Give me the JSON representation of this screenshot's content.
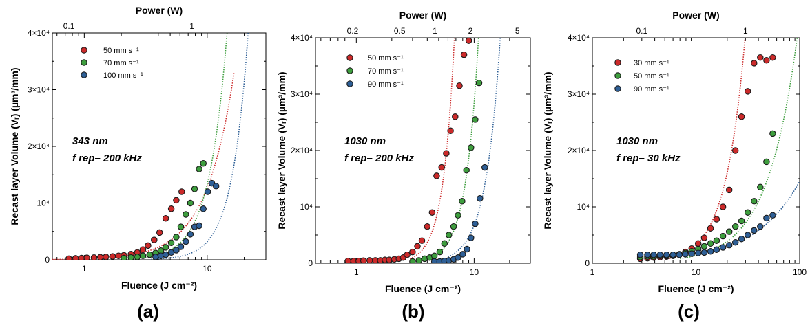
{
  "chart_data": [
    {
      "type": "scatter",
      "panel_label": "(a)",
      "xlabel": "Fluence  (J cm⁻²)",
      "ylabel": "Recast layer Volume (Vᵣ) (µm³/mm)",
      "top_xlabel": "Power (W)",
      "xscale": "log",
      "xlim": [
        0.55,
        30
      ],
      "ylim": [
        0,
        40000
      ],
      "x_ticks": [
        {
          "v": 1,
          "label": "1"
        },
        {
          "v": 10,
          "label": "10"
        }
      ],
      "top_ticks": [
        {
          "v": 0.75,
          "label": "0.1"
        },
        {
          "v": 7.5,
          "label": "1"
        }
      ],
      "y_ticks": [
        {
          "v": 0,
          "label": "0"
        },
        {
          "v": 10000,
          "label": "10⁴"
        },
        {
          "v": 20000,
          "label": "2×10⁴"
        },
        {
          "v": 30000,
          "label": "3×10⁴"
        },
        {
          "v": 40000,
          "label": "4×10⁴"
        }
      ],
      "annotation": [
        "343 nm",
        "f rep– 200 kHz"
      ],
      "legend_position": "top-left",
      "series": [
        {
          "name": "50 mm s⁻¹",
          "color": "#cc2a2a",
          "x": [
            0.75,
            0.85,
            0.95,
            1.05,
            1.2,
            1.35,
            1.5,
            1.7,
            1.9,
            2.1,
            2.4,
            2.7,
            3.0,
            3.3,
            3.7,
            4.1,
            4.6,
            5.1,
            5.6,
            6.2
          ],
          "y": [
            200,
            250,
            300,
            350,
            400,
            450,
            500,
            600,
            700,
            800,
            1000,
            1300,
            1800,
            2500,
            3500,
            4800,
            7300,
            9000,
            10500,
            12000
          ],
          "fit": {
            "a": 160,
            "b": 1.9,
            "x0": 0.55,
            "x1": 16.5
          }
        },
        {
          "name": "70 mm s⁻¹",
          "color": "#3e9e3e",
          "x": [
            2.1,
            2.4,
            2.7,
            3.0,
            3.4,
            3.8,
            4.2,
            4.6,
            5.1,
            5.6,
            6.1,
            6.7,
            7.3,
            7.9,
            8.6,
            9.3
          ],
          "y": [
            300,
            400,
            500,
            700,
            900,
            1200,
            1600,
            2200,
            3000,
            4000,
            5800,
            8000,
            10000,
            12500,
            16000,
            17000
          ],
          "fit": {
            "a": 15,
            "b": 2.95,
            "x0": 2.0,
            "x1": 18
          }
        },
        {
          "name": "100 mm s⁻¹",
          "color": "#2e5f96",
          "x": [
            3.8,
            4.2,
            4.6,
            5.1,
            5.6,
            6.1,
            6.7,
            7.3,
            7.9,
            8.6,
            9.3,
            10.1,
            10.9,
            11.8
          ],
          "y": [
            500,
            700,
            900,
            1300,
            1700,
            2300,
            3200,
            4500,
            5800,
            6000,
            9000,
            12000,
            13500,
            13000
          ],
          "fit": {
            "a": 1.6,
            "b": 3.3,
            "x0": 3.5,
            "x1": 30
          }
        }
      ]
    },
    {
      "type": "scatter",
      "panel_label": "(b)",
      "xlabel": "Fluence  (J cm⁻²)",
      "ylabel": "Recast layer Volume (Vᵣ) (µm³/mm)",
      "top_xlabel": "Power (W)",
      "xscale": "log",
      "xlim": [
        0.45,
        30
      ],
      "ylim": [
        0,
        40000
      ],
      "x_ticks": [
        {
          "v": 1,
          "label": "1"
        },
        {
          "v": 10,
          "label": "10"
        }
      ],
      "top_ticks": [
        {
          "v": 0.93,
          "label": "0.2"
        },
        {
          "v": 2.33,
          "label": "0.5"
        },
        {
          "v": 4.65,
          "label": "1"
        },
        {
          "v": 9.3,
          "label": "2"
        },
        {
          "v": 23.3,
          "label": "5"
        }
      ],
      "y_ticks": [
        {
          "v": 0,
          "label": "0"
        },
        {
          "v": 10000,
          "label": "10⁴"
        },
        {
          "v": 20000,
          "label": "2×10⁴"
        },
        {
          "v": 30000,
          "label": "3×10⁴"
        },
        {
          "v": 40000,
          "label": "4×10⁴"
        }
      ],
      "annotation": [
        "1030 nm",
        "f rep– 200 kHz"
      ],
      "legend_position": "top-left",
      "series": [
        {
          "name": "50 mm s⁻¹",
          "color": "#cc2a2a",
          "x": [
            0.85,
            0.95,
            1.05,
            1.15,
            1.3,
            1.45,
            1.6,
            1.75,
            1.9,
            2.1,
            2.3,
            2.5,
            2.7,
            3.0,
            3.3,
            3.6,
            4.0,
            4.4,
            4.8,
            5.3,
            5.8,
            6.3,
            6.9,
            7.5,
            8.2,
            9.0
          ],
          "y": [
            400,
            400,
            400,
            450,
            500,
            500,
            500,
            600,
            600,
            700,
            800,
            1000,
            1500,
            2000,
            3000,
            4000,
            6500,
            9000,
            15500,
            17000,
            19500,
            23500,
            26000,
            31500,
            37000,
            39500
          ],
          "fit": {
            "a": 10000,
            "b": 4.5,
            "x0": 2.85,
            "x1": 9.6,
            "ref": 5.0
          }
        },
        {
          "name": "70 mm s⁻¹",
          "color": "#3e9e3e",
          "x": [
            3.0,
            3.4,
            3.8,
            4.2,
            4.6,
            5.1,
            5.6,
            6.1,
            6.7,
            7.3,
            7.9,
            8.6,
            9.4,
            10.2,
            11.0
          ],
          "y": [
            300,
            500,
            800,
            1000,
            1300,
            2000,
            3500,
            5000,
            6500,
            8500,
            11000,
            16500,
            20500,
            25500,
            32000
          ],
          "fit": {
            "a": 10000,
            "b": 4.0,
            "x0": 4.8,
            "x1": 11.6,
            "ref": 7.7
          }
        },
        {
          "name": "90 mm s⁻¹",
          "color": "#2e5f96",
          "x": [
            4.6,
            5.1,
            5.6,
            6.1,
            6.7,
            7.3,
            8.0,
            8.7,
            9.4,
            10.2,
            11.2,
            12.3
          ],
          "y": [
            300,
            300,
            400,
            500,
            700,
            1000,
            1600,
            2500,
            4500,
            7000,
            11500,
            17000
          ],
          "fit": {
            "a": 10000,
            "b": 3.5,
            "x0": 6.0,
            "x1": 21,
            "ref": 11.2
          }
        }
      ]
    },
    {
      "type": "scatter",
      "panel_label": "(c)",
      "xlabel": "Fluence  (J cm⁻²)",
      "ylabel": "Recast layer Volume (Vᵣ) (µm³/mm)",
      "top_xlabel": "Power (W)",
      "xscale": "log",
      "xlim": [
        1,
        100
      ],
      "ylim": [
        0,
        40000
      ],
      "x_ticks": [
        {
          "v": 1,
          "label": "1"
        },
        {
          "v": 10,
          "label": "10"
        },
        {
          "v": 100,
          "label": "100"
        }
      ],
      "top_ticks": [
        {
          "v": 3.0,
          "label": "0.1"
        },
        {
          "v": 30,
          "label": "1"
        }
      ],
      "y_ticks": [
        {
          "v": 0,
          "label": "0"
        },
        {
          "v": 10000,
          "label": "10⁴"
        },
        {
          "v": 20000,
          "label": "2×10⁴"
        },
        {
          "v": 30000,
          "label": "3×10⁴"
        },
        {
          "v": 40000,
          "label": "4×10⁴"
        }
      ],
      "annotation": [
        "1030 nm",
        "f rep– 30 kHz"
      ],
      "legend_position": "top-left",
      "series": [
        {
          "name": "30 mm s⁻¹",
          "color": "#cc2a2a",
          "x": [
            2.9,
            3.4,
            3.9,
            4.5,
            5.2,
            6.0,
            6.9,
            7.9,
            9.1,
            10.5,
            12.0,
            13.8,
            15.8,
            18.2,
            20.9,
            24.0,
            27.5,
            31.6,
            36.3,
            41.7,
            47.9,
            55.0
          ],
          "y": [
            800,
            900,
            1000,
            1100,
            1200,
            1300,
            1600,
            2000,
            2600,
            3500,
            4500,
            6200,
            7800,
            10000,
            13000,
            20000,
            26000,
            30500,
            35500,
            36500,
            36000,
            36500
          ],
          "fit": {
            "a": 20000,
            "b": 2.3,
            "x0": 5.0,
            "x1": 40,
            "ref": 22
          }
        },
        {
          "name": "50 mm s⁻¹",
          "color": "#3e9e3e",
          "x": [
            2.9,
            3.4,
            3.9,
            4.5,
            5.2,
            6.0,
            6.9,
            7.9,
            9.1,
            10.5,
            12.0,
            13.8,
            15.8,
            18.2,
            20.9,
            24.0,
            27.5,
            31.6,
            36.3,
            41.7,
            47.9,
            55.0
          ],
          "y": [
            1100,
            1200,
            1200,
            1300,
            1300,
            1400,
            1500,
            1800,
            2100,
            2500,
            3000,
            3500,
            4000,
            4800,
            5600,
            6500,
            7500,
            9000,
            11000,
            13500,
            18000,
            23000
          ],
          "fit": {
            "a": 11000,
            "b": 1.5,
            "x0": 7.0,
            "x1": 100,
            "ref": 40
          }
        },
        {
          "name": "90 mm s⁻¹",
          "color": "#2e5f96",
          "x": [
            2.9,
            3.4,
            3.9,
            4.5,
            5.2,
            6.0,
            6.9,
            7.9,
            9.1,
            10.5,
            12.0,
            13.8,
            15.8,
            18.2,
            20.9,
            24.0,
            27.5,
            31.6,
            36.3,
            41.7,
            47.9,
            55.0
          ],
          "y": [
            1500,
            1500,
            1500,
            1500,
            1500,
            1500,
            1500,
            1600,
            1700,
            1800,
            1900,
            2100,
            2400,
            2800,
            3200,
            3700,
            4300,
            5000,
            5800,
            6500,
            8000,
            8500
          ],
          "fit": {
            "a": 8000,
            "b": 1.0,
            "x0": 9.0,
            "x1": 100,
            "ref": 55
          }
        }
      ]
    }
  ]
}
